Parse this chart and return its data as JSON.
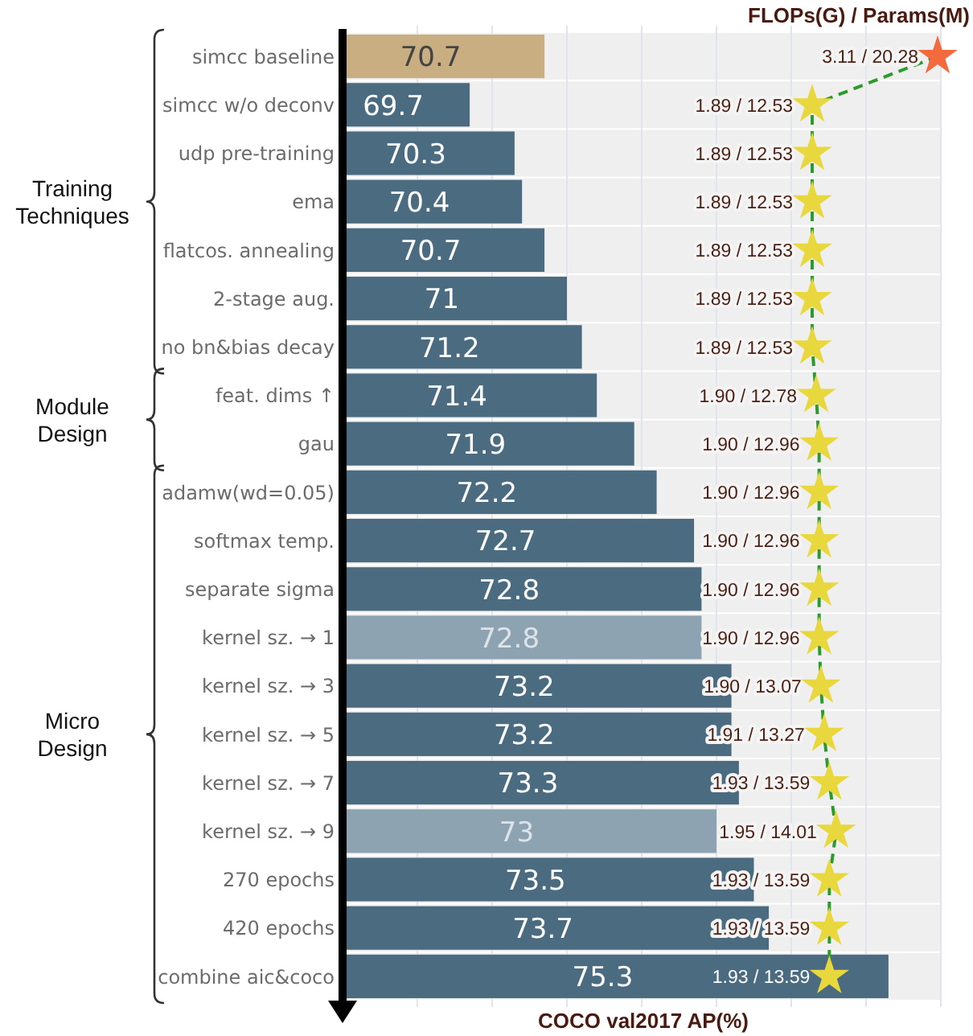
{
  "chart_data": [
    {
      "type": "bar",
      "orientation": "horizontal",
      "xlabel": "COCO val2017 AP(%)",
      "categories": [
        "simcc baseline",
        "simcc w/o deconv",
        "udp pre-training",
        "ema",
        "flatcos. annealing",
        "2-stage aug.",
        "no bn&bias decay",
        "feat. dims ↑",
        "gau",
        "adamw(wd=0.05)",
        "softmax temp.",
        "separate sigma",
        "kernel sz. → 1",
        "kernel sz. → 3",
        "kernel sz. → 5",
        "kernel sz. → 7",
        "kernel sz. → 9",
        "270 epochs",
        "420 epochs",
        "combine aic&coco"
      ],
      "xlim": [
        68,
        76
      ],
      "xticks": [
        {
          "value": 69,
          "label": null
        },
        {
          "value": 70,
          "label": null
        },
        {
          "value": 71,
          "label": null
        },
        {
          "value": 72,
          "label": null
        },
        {
          "value": 73,
          "label": null
        },
        {
          "value": 74,
          "label": null
        },
        {
          "value": 75,
          "label": null
        },
        {
          "value": 76,
          "label": null
        }
      ],
      "grid": "x",
      "tick_labels": "y",
      "data_labels": true,
      "values": [
        70.7,
        69.7,
        70.3,
        70.4,
        70.7,
        71,
        71.2,
        71.4,
        71.9,
        72.2,
        72.7,
        72.8,
        72.8,
        73.2,
        73.2,
        73.3,
        73,
        73.5,
        73.7,
        75.3
      ],
      "colors": [
        "#c9ae82",
        "#4b6b80",
        "#4b6b80",
        "#4b6b80",
        "#4b6b80",
        "#4b6b80",
        "#4b6b80",
        "#4b6b80",
        "#4b6b80",
        "#4b6b80",
        "#4b6b80",
        "#4b6b80",
        "#8ea3b1",
        "#4b6b80",
        "#4b6b80",
        "#4b6b80",
        "#8ea3b1",
        "#4b6b80",
        "#4b6b80",
        "#4b6b80"
      ],
      "annotations": [
        "Training Techniques",
        "Module Design",
        "Micro Design"
      ]
    },
    {
      "type": "line",
      "orientation": "horizontal",
      "title": "FLOPs(G) / Params(M)",
      "tick_labels": false,
      "categories": [
        null,
        null,
        null,
        null,
        null,
        null,
        null,
        null,
        null,
        null,
        null,
        null,
        null,
        null,
        null,
        null,
        null,
        null,
        null,
        null
      ],
      "series": [
        {
          "color": "#2e9a2e",
          "marker": "star",
          "line_style": "dashed",
          "values": [
            20.28,
            12.53,
            12.53,
            12.53,
            12.53,
            12.53,
            12.53,
            12.78,
            12.96,
            12.96,
            12.96,
            12.96,
            12.96,
            13.07,
            13.27,
            13.59,
            14.01,
            13.59,
            13.59,
            13.59
          ],
          "colors": [
            "#f26a3d",
            "#e8d83e",
            "#e8d83e",
            "#e8d83e",
            "#e8d83e",
            "#e8d83e",
            "#e8d83e",
            "#e8d83e",
            "#e8d83e",
            "#e8d83e",
            "#e8d83e",
            "#e8d83e",
            "#e8d83e",
            "#e8d83e",
            "#e8d83e",
            "#e8d83e",
            "#e8d83e",
            "#e8d83e",
            "#e8d83e",
            "#e8d83e"
          ],
          "value_labels": [
            "3.11 / 20.28",
            "1.89 / 12.53",
            "1.89 / 12.53",
            "1.89 / 12.53",
            "1.89 / 12.53",
            "1.89 / 12.53",
            "1.89 / 12.53",
            "1.90 / 12.78",
            "1.90 / 12.96",
            "1.90 / 12.96",
            "1.90 / 12.96",
            "1.90 / 12.96",
            "1.90 / 12.96",
            "1.90 / 13.07",
            "1.91 / 13.27",
            "1.93 / 13.59",
            "1.95 / 14.01",
            "1.93 / 13.59",
            "1.93 / 13.59",
            "1.93 / 13.59"
          ]
        }
      ]
    }
  ]
}
